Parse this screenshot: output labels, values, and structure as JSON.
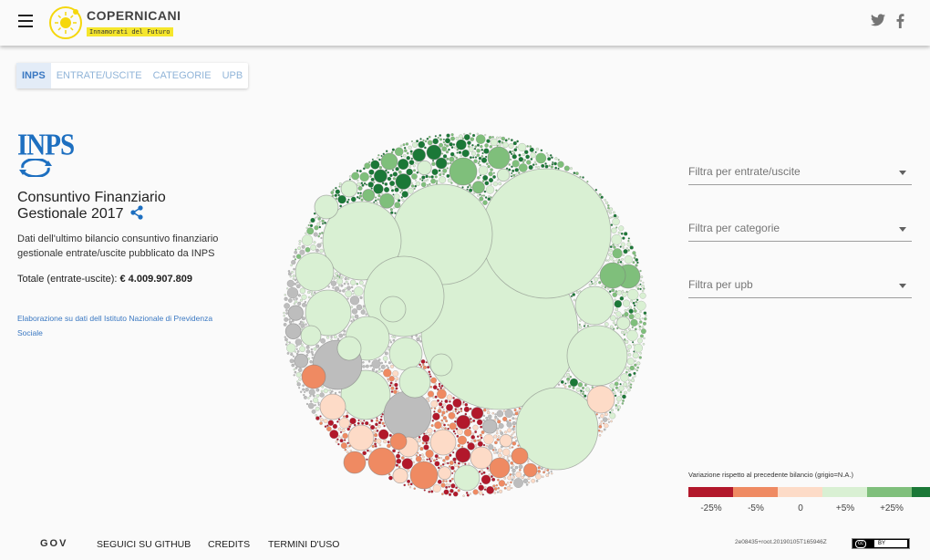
{
  "header": {
    "brand_name": "COPERNICANI",
    "brand_tagline": "Innamorati del Futuro",
    "icons": [
      "menu-icon",
      "sun-logo-icon",
      "twitter-icon",
      "facebook-icon"
    ]
  },
  "tabs": [
    {
      "label": "INPS",
      "active": true
    },
    {
      "label": "ENTRATE/USCITE",
      "active": false
    },
    {
      "label": "CATEGORIE",
      "active": false
    },
    {
      "label": "UPB",
      "active": false
    }
  ],
  "sidebar": {
    "logo_text": "INPS",
    "title_line1": "Consuntivo Finanziario",
    "title_line2": "Gestionale 2017",
    "description": "Dati dell'ultimo bilancio consuntivo finanziario gestionale entrate/uscite pubblicato da INPS",
    "total_label": "Totale (entrate-uscite):",
    "total_value": "€ 4.009.907.809",
    "credit_link": "Elaborazione su dati dell Istituto Nazionale di Previdenza Sociale"
  },
  "filters": [
    {
      "placeholder": "Filtra per entrate/uscite"
    },
    {
      "placeholder": "Filtra per categorie"
    },
    {
      "placeholder": "Filtra per upb"
    }
  ],
  "legend": {
    "title": "Variazione rispetto al precedente bilancio (grigio=N.A.)",
    "colors": [
      "#b2182b",
      "#ef8a62",
      "#fddbc7",
      "#d9f0d3",
      "#7fbf7b",
      "#1b7837"
    ],
    "labels": [
      "-25%",
      "-5%",
      "0",
      "+5%",
      "+25%"
    ]
  },
  "colors": {
    "neg_strong": "#b2182b",
    "neg": "#ef8a62",
    "neg_light": "#fddbc7",
    "pos_light": "#d9f0d3",
    "pos": "#7fbf7b",
    "pos_strong": "#1b7837",
    "na": "#bdbdbd",
    "accent": "#3a78c2",
    "brand_yellow": "#f5e62c"
  },
  "footer": {
    "gov_logo": "GOV",
    "links": [
      "SEGUICI SU GITHUB",
      "CREDITS",
      "TERMINI D'USO"
    ],
    "version": "2e08435+root.20190105T165946Z",
    "license": "cc",
    "license_by": "BY"
  }
}
